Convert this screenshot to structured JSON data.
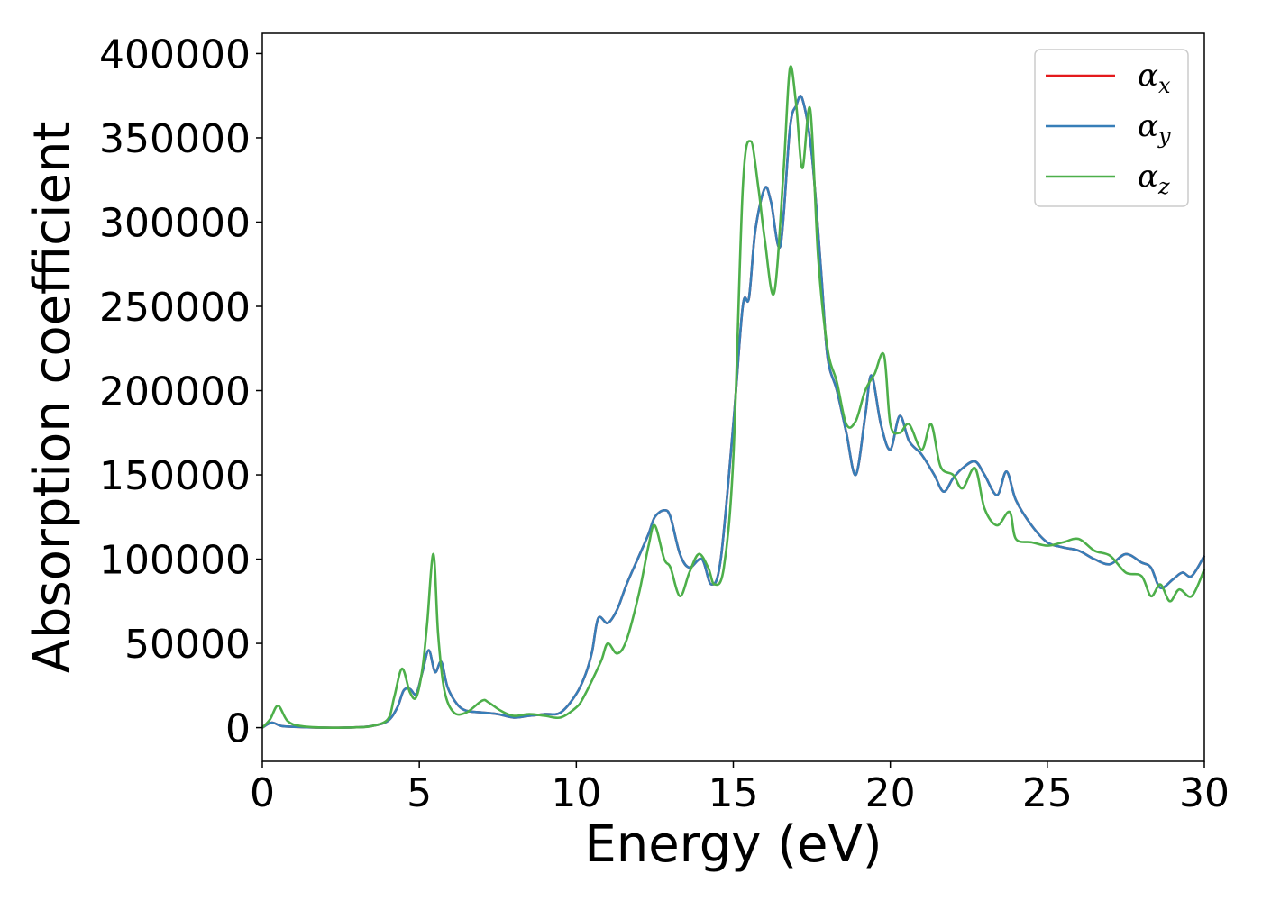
{
  "chart_data": {
    "type": "line",
    "title": "",
    "xlabel": "Energy (eV)",
    "ylabel": "Absorption coefficient",
    "xlim": [
      0,
      30
    ],
    "ylim": [
      -20000,
      412000
    ],
    "xticks": [
      0,
      5,
      10,
      15,
      20,
      25,
      30
    ],
    "yticks": [
      0,
      50000,
      100000,
      150000,
      200000,
      250000,
      300000,
      350000,
      400000
    ],
    "grid": false,
    "legend_position": "top-right",
    "series": [
      {
        "name": "αx",
        "base": "α",
        "sub": "x",
        "color": "#e41a1c",
        "x": [
          0,
          0.3,
          0.6,
          1,
          2,
          3,
          3.5,
          4,
          4.3,
          4.5,
          4.7,
          4.9,
          5.1,
          5.3,
          5.5,
          5.7,
          5.9,
          6.2,
          6.5,
          7,
          7.5,
          8,
          8.5,
          9,
          9.5,
          10,
          10.3,
          10.5,
          10.7,
          11,
          11.3,
          11.6,
          12,
          12.3,
          12.5,
          12.8,
          13,
          13.3,
          13.6,
          14,
          14.3,
          14.6,
          15,
          15.3,
          15.5,
          15.7,
          16,
          16.2,
          16.5,
          16.8,
          17,
          17.2,
          17.5,
          17.8,
          18,
          18.3,
          18.6,
          18.9,
          19.2,
          19.4,
          19.7,
          20,
          20.3,
          20.6,
          21,
          21.4,
          21.7,
          22,
          22.3,
          22.7,
          23,
          23.4,
          23.7,
          24,
          24.5,
          25,
          25.5,
          26,
          26.5,
          27,
          27.5,
          28,
          28.3,
          28.6,
          29,
          29.3,
          29.6,
          30
        ],
        "values": [
          0,
          3000,
          1000,
          500,
          0,
          200,
          1000,
          4000,
          12000,
          22000,
          23000,
          20000,
          33000,
          46000,
          33000,
          39000,
          24000,
          14000,
          10000,
          9000,
          8000,
          6000,
          7000,
          8000,
          9000,
          20000,
          32000,
          45000,
          65000,
          62000,
          70000,
          85000,
          102000,
          115000,
          125000,
          129000,
          125000,
          103000,
          95000,
          100000,
          85000,
          100000,
          180000,
          250000,
          255000,
          295000,
          320000,
          312000,
          286000,
          355000,
          369000,
          373000,
          340000,
          270000,
          220000,
          200000,
          175000,
          150000,
          185000,
          209000,
          180000,
          165000,
          185000,
          170000,
          162000,
          150000,
          140000,
          148000,
          154000,
          158000,
          150000,
          138000,
          152000,
          135000,
          120000,
          110000,
          107000,
          105000,
          100000,
          97000,
          103000,
          98000,
          95000,
          83000,
          88000,
          92000,
          90000,
          102000
        ]
      },
      {
        "name": "αy",
        "base": "α",
        "sub": "y",
        "color": "#377eb8",
        "x": [
          0,
          0.3,
          0.6,
          1,
          2,
          3,
          3.5,
          4,
          4.3,
          4.5,
          4.7,
          4.9,
          5.1,
          5.3,
          5.5,
          5.7,
          5.9,
          6.2,
          6.5,
          7,
          7.5,
          8,
          8.5,
          9,
          9.5,
          10,
          10.3,
          10.5,
          10.7,
          11,
          11.3,
          11.6,
          12,
          12.3,
          12.5,
          12.8,
          13,
          13.3,
          13.6,
          14,
          14.3,
          14.6,
          15,
          15.3,
          15.5,
          15.7,
          16,
          16.2,
          16.5,
          16.8,
          17,
          17.2,
          17.5,
          17.8,
          18,
          18.3,
          18.6,
          18.9,
          19.2,
          19.4,
          19.7,
          20,
          20.3,
          20.6,
          21,
          21.4,
          21.7,
          22,
          22.3,
          22.7,
          23,
          23.4,
          23.7,
          24,
          24.5,
          25,
          25.5,
          26,
          26.5,
          27,
          27.5,
          28,
          28.3,
          28.6,
          29,
          29.3,
          29.6,
          30
        ],
        "values": [
          0,
          3000,
          1000,
          500,
          0,
          200,
          1000,
          4000,
          12000,
          22000,
          23000,
          20000,
          33000,
          46000,
          33000,
          39000,
          24000,
          14000,
          10000,
          9000,
          8000,
          6000,
          7000,
          8000,
          9000,
          20000,
          32000,
          45000,
          65000,
          62000,
          70000,
          85000,
          102000,
          115000,
          125000,
          129000,
          125000,
          103000,
          95000,
          100000,
          85000,
          100000,
          180000,
          250000,
          255000,
          295000,
          320000,
          312000,
          286000,
          355000,
          369000,
          373000,
          340000,
          270000,
          220000,
          200000,
          175000,
          150000,
          185000,
          209000,
          180000,
          165000,
          185000,
          170000,
          162000,
          150000,
          140000,
          148000,
          154000,
          158000,
          150000,
          138000,
          152000,
          135000,
          120000,
          110000,
          107000,
          105000,
          100000,
          97000,
          103000,
          98000,
          95000,
          83000,
          88000,
          92000,
          90000,
          102000
        ]
      },
      {
        "name": "αz",
        "base": "α",
        "sub": "z",
        "color": "#4daf4a",
        "x": [
          0,
          0.25,
          0.5,
          0.8,
          1.2,
          2,
          3,
          3.5,
          4,
          4.2,
          4.45,
          4.7,
          4.9,
          5.1,
          5.25,
          5.45,
          5.6,
          5.8,
          6.1,
          6.5,
          7,
          7.2,
          7.6,
          8,
          8.5,
          9,
          9.5,
          10,
          10.2,
          10.5,
          10.8,
          11,
          11.3,
          11.6,
          12,
          12.3,
          12.5,
          12.8,
          13,
          13.3,
          13.6,
          13.9,
          14.2,
          14.4,
          14.7,
          15,
          15.3,
          15.55,
          15.8,
          16,
          16.3,
          16.6,
          16.8,
          17,
          17.2,
          17.45,
          17.7,
          18,
          18.3,
          18.6,
          18.9,
          19.2,
          19.5,
          19.8,
          20,
          20.3,
          20.6,
          21,
          21.3,
          21.6,
          22,
          22.3,
          22.7,
          23,
          23.4,
          23.8,
          24,
          24.5,
          25,
          25.5,
          26,
          26.5,
          27,
          27.5,
          28,
          28.3,
          28.6,
          28.9,
          29.2,
          29.6,
          30
        ],
        "values": [
          0,
          5000,
          13000,
          4000,
          1000,
          0,
          200,
          1000,
          5000,
          18000,
          35000,
          21000,
          18000,
          35000,
          62000,
          103000,
          55000,
          22000,
          9000,
          9000,
          16000,
          15000,
          10000,
          7000,
          8000,
          7000,
          6000,
          12000,
          17000,
          28000,
          40000,
          50000,
          44000,
          52000,
          80000,
          108000,
          120000,
          100000,
          95000,
          78000,
          92000,
          103000,
          95000,
          85000,
          95000,
          160000,
          320000,
          348000,
          320000,
          290000,
          258000,
          330000,
          391000,
          370000,
          332000,
          367000,
          280000,
          225000,
          205000,
          180000,
          182000,
          200000,
          210000,
          221000,
          180000,
          175000,
          180000,
          165000,
          180000,
          155000,
          150000,
          142000,
          154000,
          130000,
          120000,
          128000,
          112000,
          110000,
          108000,
          110000,
          112000,
          105000,
          102000,
          92000,
          90000,
          78000,
          85000,
          75000,
          82000,
          78000,
          94000
        ]
      }
    ]
  }
}
